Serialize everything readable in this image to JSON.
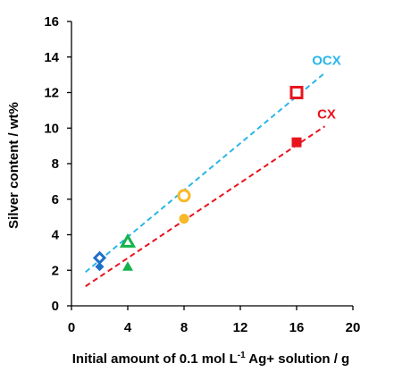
{
  "chart_data": {
    "type": "scatter",
    "xlabel": "Initial amount of 0.1 mol L",
    "xlabel_sup": "-1",
    "xlabel_tail": " Ag+ solution / g",
    "ylabel": "Silver content / wt%",
    "xlim": [
      0,
      20
    ],
    "ylim": [
      0,
      16
    ],
    "xticks": [
      0,
      4,
      8,
      12,
      16,
      20
    ],
    "yticks": [
      0,
      2,
      4,
      6,
      8,
      10,
      12,
      14,
      16
    ],
    "grid": false,
    "fit_lines": [
      {
        "label": "OCX",
        "color": "#29b6e8",
        "x": [
          1,
          18
        ],
        "y": [
          1.9,
          13.1
        ]
      },
      {
        "label": "CX",
        "color": "#e8141e",
        "x": [
          1,
          18
        ],
        "y": [
          1.1,
          10.1
        ]
      }
    ],
    "series": [
      {
        "color": "#1f6fc9",
        "marker": "diamond",
        "filled": false,
        "x": [
          2
        ],
        "y": [
          2.7
        ]
      },
      {
        "color": "#1f6fc9",
        "marker": "diamond",
        "filled": true,
        "x": [
          2
        ],
        "y": [
          2.2
        ]
      },
      {
        "color": "#16b34a",
        "marker": "triangle",
        "filled": false,
        "x": [
          4
        ],
        "y": [
          3.6
        ]
      },
      {
        "color": "#16b34a",
        "marker": "triangle",
        "filled": true,
        "x": [
          4
        ],
        "y": [
          2.2
        ]
      },
      {
        "color": "#f7b928",
        "marker": "circle",
        "filled": false,
        "x": [
          8
        ],
        "y": [
          6.2
        ]
      },
      {
        "color": "#f7b928",
        "marker": "circle",
        "filled": true,
        "x": [
          8
        ],
        "y": [
          4.9
        ]
      },
      {
        "color": "#e8141e",
        "marker": "square",
        "filled": false,
        "x": [
          16
        ],
        "y": [
          12.0
        ]
      },
      {
        "color": "#e8141e",
        "marker": "square",
        "filled": true,
        "x": [
          16
        ],
        "y": [
          9.2
        ]
      }
    ]
  }
}
